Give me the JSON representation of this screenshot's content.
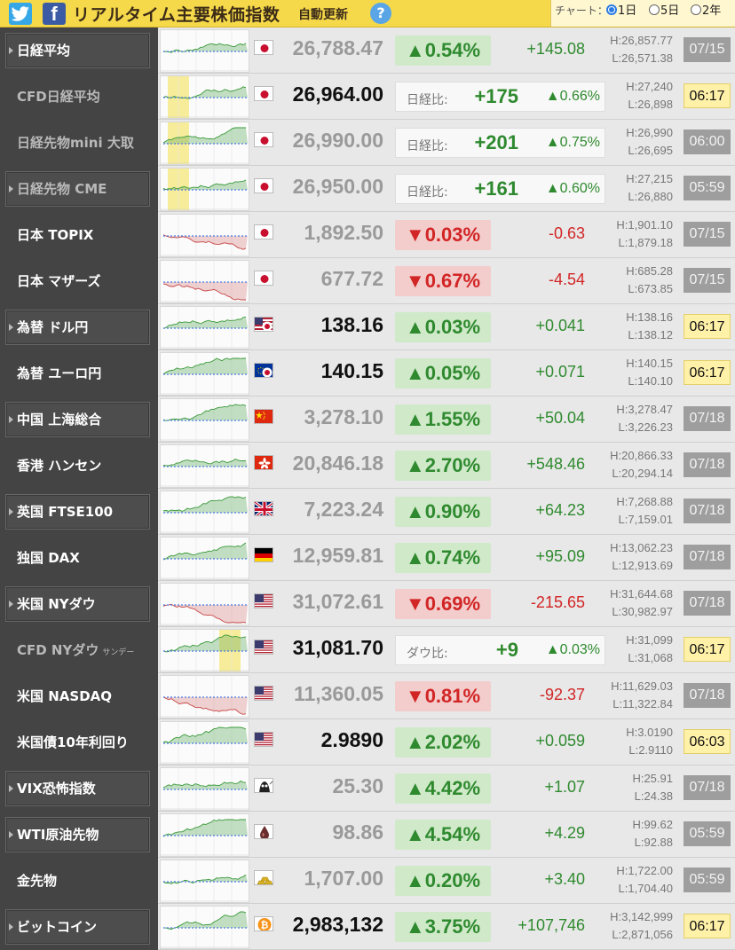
{
  "header": {
    "twitter_icon": "twitter-icon",
    "facebook_icon": "facebook-icon",
    "title": "リアルタイム主要株価指数",
    "auto_update": "自動更新",
    "help": "?",
    "chart_label": "チャート：",
    "chart_options": [
      {
        "label": "1日",
        "selected": true
      },
      {
        "label": "5日",
        "selected": false
      },
      {
        "label": "2年",
        "selected": false
      }
    ]
  },
  "colors": {
    "header_bg": "#f6d94a",
    "up": "#2f8a2f",
    "down": "#d22525",
    "up_bg": "#cfe9c9",
    "down_bg": "#f3cccc",
    "open_time_bg": "#fff1a8",
    "closed_time_bg": "#9e9e9e"
  },
  "rows": [
    {
      "name": "日経平均",
      "flag": "japan-flag-icon",
      "price": "26,788.47",
      "pct": "▲0.54%",
      "abs": "+145.08",
      "dir": "up",
      "high": "H:26,857.77",
      "low": "L:26,571.38",
      "time": "07/15",
      "time_state": "closed",
      "live": false,
      "style": "button",
      "color": "white"
    },
    {
      "name": "CFD日経平均",
      "flag": "japan-flag-icon",
      "price": "26,964.00",
      "diff_label": "日経比:",
      "diff_val": "+175",
      "diff_pct": "▲0.66%",
      "high": "H:27,240",
      "low": "L:26,898",
      "time": "06:17",
      "time_state": "open",
      "live": true,
      "style": "flat",
      "color": "grey"
    },
    {
      "name": "日経先物mini 大取",
      "flag": "japan-flag-icon",
      "price": "26,990.00",
      "diff_label": "日経比:",
      "diff_val": "+201",
      "diff_pct": "▲0.75%",
      "high": "H:26,990",
      "low": "L:26,695",
      "time": "06:00",
      "time_state": "closed",
      "live": false,
      "style": "flat",
      "color": "grey"
    },
    {
      "name": "日経先物 CME",
      "flag": "japan-flag-icon",
      "price": "26,950.00",
      "diff_label": "日経比:",
      "diff_val": "+161",
      "diff_pct": "▲0.60%",
      "high": "H:27,215",
      "low": "L:26,880",
      "time": "05:59",
      "time_state": "closed",
      "live": false,
      "style": "button",
      "color": "grey"
    },
    {
      "name": "日本 TOPIX",
      "flag": "japan-flag-icon",
      "price": "1,892.50",
      "pct": "▼0.03%",
      "abs": "-0.63",
      "dir": "down",
      "high": "H:1,901.10",
      "low": "L:1,879.18",
      "time": "07/15",
      "time_state": "closed",
      "live": false,
      "style": "flat",
      "color": "white"
    },
    {
      "name": "日本 マザーズ",
      "flag": "japan-flag-icon",
      "price": "677.72",
      "pct": "▼0.67%",
      "abs": "-4.54",
      "dir": "down",
      "high": "H:685.28",
      "low": "L:673.85",
      "time": "07/15",
      "time_state": "closed",
      "live": false,
      "style": "flat",
      "color": "white"
    },
    {
      "name": "為替 ドル円",
      "flag": "usd-jpy-flag-icon",
      "price": "138.16",
      "pct": "▲0.03%",
      "abs": "+0.041",
      "dir": "up",
      "high": "H:138.16",
      "low": "L:138.12",
      "time": "06:17",
      "time_state": "open",
      "live": true,
      "style": "button",
      "color": "white"
    },
    {
      "name": "為替 ユーロ円",
      "flag": "eur-jpy-flag-icon",
      "price": "140.15",
      "pct": "▲0.05%",
      "abs": "+0.071",
      "dir": "up",
      "high": "H:140.15",
      "low": "L:140.10",
      "time": "06:17",
      "time_state": "open",
      "live": true,
      "style": "flat",
      "color": "white"
    },
    {
      "name": "中国 上海総合",
      "flag": "china-flag-icon",
      "price": "3,278.10",
      "pct": "▲1.55%",
      "abs": "+50.04",
      "dir": "up",
      "high": "H:3,278.47",
      "low": "L:3,226.23",
      "time": "07/18",
      "time_state": "closed",
      "live": false,
      "style": "button",
      "color": "white"
    },
    {
      "name": "香港 ハンセン",
      "flag": "hongkong-flag-icon",
      "price": "20,846.18",
      "pct": "▲2.70%",
      "abs": "+548.46",
      "dir": "up",
      "high": "H:20,866.33",
      "low": "L:20,294.14",
      "time": "07/18",
      "time_state": "closed",
      "live": false,
      "style": "flat",
      "color": "white"
    },
    {
      "name": "英国 FTSE100",
      "flag": "uk-flag-icon",
      "price": "7,223.24",
      "pct": "▲0.90%",
      "abs": "+64.23",
      "dir": "up",
      "high": "H:7,268.88",
      "low": "L:7,159.01",
      "time": "07/18",
      "time_state": "closed",
      "live": false,
      "style": "button",
      "color": "white"
    },
    {
      "name": "独国 DAX",
      "flag": "germany-flag-icon",
      "price": "12,959.81",
      "pct": "▲0.74%",
      "abs": "+95.09",
      "dir": "up",
      "high": "H:13,062.23",
      "low": "L:12,913.69",
      "time": "07/18",
      "time_state": "closed",
      "live": false,
      "style": "flat",
      "color": "white"
    },
    {
      "name": "米国 NYダウ",
      "flag": "usa-flag-icon",
      "price": "31,072.61",
      "pct": "▼0.69%",
      "abs": "-215.65",
      "dir": "down",
      "high": "H:31,644.68",
      "low": "L:30,982.97",
      "time": "07/18",
      "time_state": "closed",
      "live": false,
      "style": "button",
      "color": "white"
    },
    {
      "name": "CFD NYダウ",
      "name_sub": "サンデー",
      "flag": "usa-flag-icon",
      "price": "31,081.70",
      "diff_label": "ダウ比:",
      "diff_val": "+9",
      "diff_pct": "▲0.03%",
      "high": "H:31,099",
      "low": "L:31,068",
      "time": "06:17",
      "time_state": "open",
      "live": true,
      "style": "flat",
      "color": "grey"
    },
    {
      "name": "米国 NASDAQ",
      "flag": "usa-flag-icon",
      "price": "11,360.05",
      "pct": "▼0.81%",
      "abs": "-92.37",
      "dir": "down",
      "high": "H:11,629.03",
      "low": "L:11,322.84",
      "time": "07/18",
      "time_state": "closed",
      "live": false,
      "style": "flat",
      "color": "white"
    },
    {
      "name": "米国債10年利回り",
      "flag": "usa-flag-icon",
      "price": "2.9890",
      "pct": "▲2.02%",
      "abs": "+0.059",
      "dir": "up",
      "high": "H:3.0190",
      "low": "L:2.9110",
      "time": "06:03",
      "time_state": "open",
      "live": true,
      "style": "flat",
      "color": "white"
    },
    {
      "name": "VIX恐怖指数",
      "flag": "vix-icon",
      "price": "25.30",
      "pct": "▲4.42%",
      "abs": "+1.07",
      "dir": "up",
      "high": "H:25.91",
      "low": "L:24.38",
      "time": "07/18",
      "time_state": "closed",
      "live": false,
      "style": "button",
      "color": "white"
    },
    {
      "name": "WTI原油先物",
      "flag": "oil-drop-icon",
      "price": "98.86",
      "pct": "▲4.54%",
      "abs": "+4.29",
      "dir": "up",
      "high": "H:99.62",
      "low": "L:92.88",
      "time": "05:59",
      "time_state": "closed",
      "live": false,
      "style": "button",
      "color": "white"
    },
    {
      "name": "金先物",
      "flag": "gold-bars-icon",
      "price": "1,707.00",
      "pct": "▲0.20%",
      "abs": "+3.40",
      "dir": "up",
      "high": "H:1,722.00",
      "low": "L:1,704.40",
      "time": "05:59",
      "time_state": "closed",
      "live": false,
      "style": "flat",
      "color": "white"
    },
    {
      "name": "ビットコイン",
      "flag": "bitcoin-icon",
      "price": "2,983,132",
      "pct": "▲3.75%",
      "abs": "+107,746",
      "dir": "up",
      "high": "H:3,142,999",
      "low": "L:2,871,056",
      "time": "06:17",
      "time_state": "open",
      "live": true,
      "style": "button",
      "color": "white"
    }
  ]
}
